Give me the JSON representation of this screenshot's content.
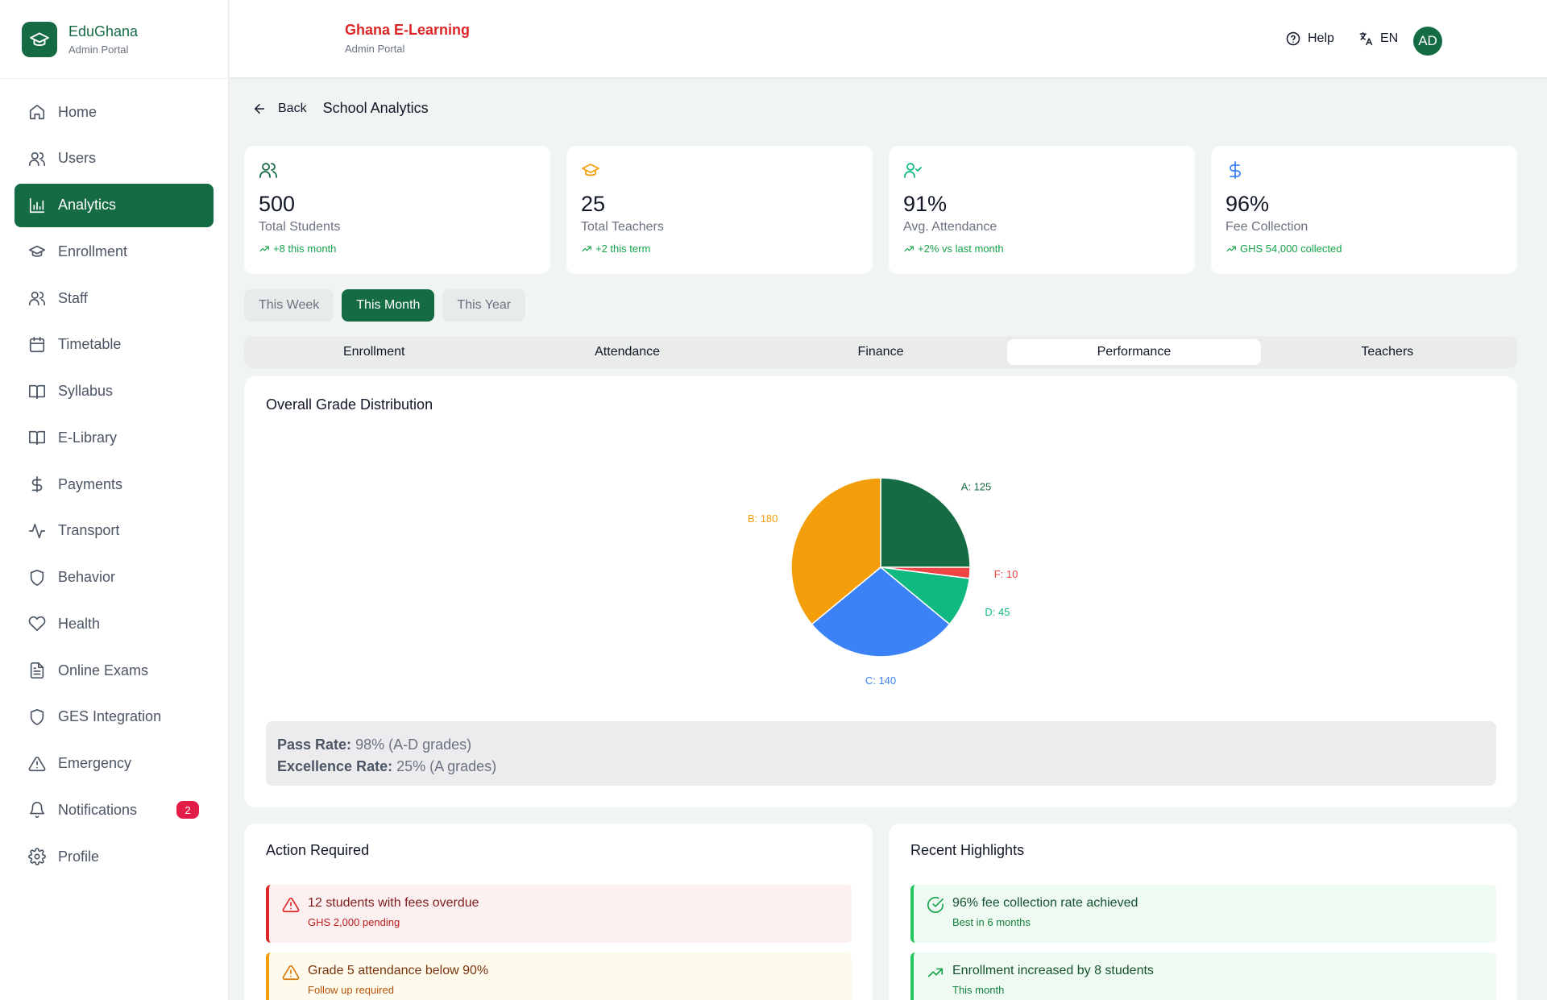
{
  "brand": {
    "name": "EduGhana",
    "subtitle": "Admin Portal",
    "icon": "graduation-cap-icon"
  },
  "sidebar": {
    "items": [
      {
        "label": "Home",
        "icon": "home-icon"
      },
      {
        "label": "Users",
        "icon": "users-icon"
      },
      {
        "label": "Analytics",
        "icon": "bar-chart-icon",
        "active": true
      },
      {
        "label": "Enrollment",
        "icon": "graduation-cap-icon"
      },
      {
        "label": "Staff",
        "icon": "users-icon"
      },
      {
        "label": "Timetable",
        "icon": "calendar-icon"
      },
      {
        "label": "Syllabus",
        "icon": "book-open-icon"
      },
      {
        "label": "E-Library",
        "icon": "book-open-icon"
      },
      {
        "label": "Payments",
        "icon": "dollar-icon"
      },
      {
        "label": "Transport",
        "icon": "activity-icon"
      },
      {
        "label": "Behavior",
        "icon": "shield-icon"
      },
      {
        "label": "Health",
        "icon": "heart-icon"
      },
      {
        "label": "Online Exams",
        "icon": "file-text-icon"
      },
      {
        "label": "GES Integration",
        "icon": "shield-icon"
      },
      {
        "label": "Emergency",
        "icon": "alert-triangle-icon"
      },
      {
        "label": "Notifications",
        "icon": "bell-icon",
        "badge": "2"
      },
      {
        "label": "Profile",
        "icon": "gear-icon"
      }
    ]
  },
  "header": {
    "title": "Ghana E-Learning",
    "subtitle": "Admin Portal",
    "help_label": "Help",
    "language": "EN",
    "avatar_initials": "AD",
    "title_color": "#dc2626"
  },
  "page": {
    "back_label": "Back",
    "title": "School Analytics"
  },
  "stats": [
    {
      "value": "500",
      "label": "Total Students",
      "trend": "+8 this month",
      "icon": "users-icon",
      "icon_color": "#156b43"
    },
    {
      "value": "25",
      "label": "Total Teachers",
      "trend": "+2 this term",
      "icon": "graduation-cap-icon",
      "icon_color": "#f59e0b"
    },
    {
      "value": "91%",
      "label": "Avg. Attendance",
      "trend": "+2% vs last month",
      "icon": "user-check-icon",
      "icon_color": "#10b981"
    },
    {
      "value": "96%",
      "label": "Fee Collection",
      "trend": "GHS 54,000 collected",
      "icon": "dollar-icon",
      "icon_color": "#3b82f6"
    }
  ],
  "periods": [
    {
      "label": "This Week"
    },
    {
      "label": "This Month",
      "active": true
    },
    {
      "label": "This Year"
    }
  ],
  "tabs": [
    {
      "label": "Enrollment"
    },
    {
      "label": "Attendance"
    },
    {
      "label": "Finance"
    },
    {
      "label": "Performance",
      "active": true
    },
    {
      "label": "Teachers"
    }
  ],
  "chart_card": {
    "title": "Overall Grade Distribution",
    "pass_rate_label": "Pass Rate:",
    "pass_rate_value": "98% (A-D grades)",
    "excellence_rate_label": "Excellence Rate:",
    "excellence_rate_value": "25% (A grades)"
  },
  "chart_data": {
    "type": "pie",
    "slices": [
      {
        "label": "A",
        "value": 125,
        "color": "#156b43"
      },
      {
        "label": "F",
        "value": 10,
        "color": "#ef4444"
      },
      {
        "label": "D",
        "value": 45,
        "color": "#10b981"
      },
      {
        "label": "C",
        "value": 140,
        "color": "#3b82f6"
      },
      {
        "label": "B",
        "value": 180,
        "color": "#f59e0b"
      }
    ],
    "data_labels": [
      "A: 125",
      "F: 10",
      "D: 45",
      "C: 140",
      "B: 180"
    ]
  },
  "action_required": {
    "title": "Action Required",
    "items": [
      {
        "title": "12 students with fees overdue",
        "subtitle": "GHS 2,000 pending",
        "icon": "alert-triangle-icon"
      },
      {
        "title": "Grade 5 attendance below 90%",
        "subtitle": "Follow up required",
        "icon": "alert-triangle-icon"
      }
    ]
  },
  "highlights": {
    "title": "Recent Highlights",
    "items": [
      {
        "title": "96% fee collection rate achieved",
        "subtitle": "Best in 6 months",
        "icon": "check-circle-icon"
      },
      {
        "title": "Enrollment increased by 8 students",
        "subtitle": "This month",
        "icon": "trending-up-icon"
      }
    ]
  }
}
